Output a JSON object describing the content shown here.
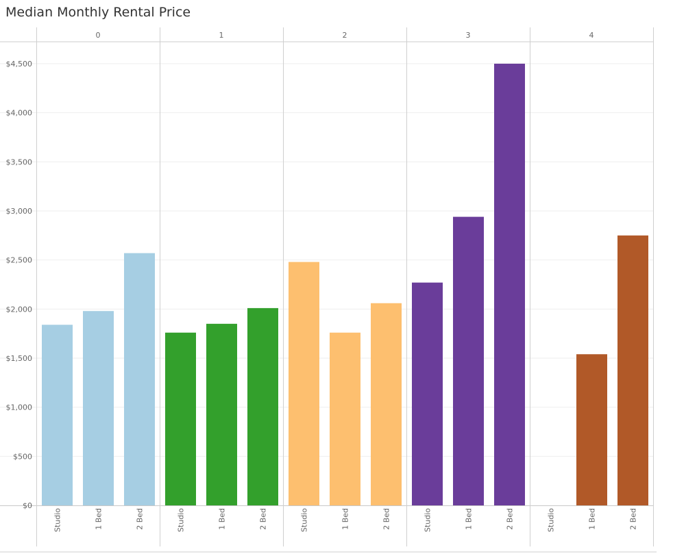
{
  "title": "Median Monthly Rental Price",
  "chart_data": {
    "type": "bar",
    "title": "Median Monthly Rental Price",
    "xlabel": "",
    "ylabel": "",
    "ylim": [
      0,
      4700
    ],
    "y_ticks": [
      0,
      500,
      1000,
      1500,
      2000,
      2500,
      3000,
      3500,
      4000,
      4500
    ],
    "y_tick_labels": [
      "$0",
      "$500",
      "$1,000",
      "$1,500",
      "$2,000",
      "$2,500",
      "$3,000",
      "$3,500",
      "$4,000",
      "$4,500"
    ],
    "categories": [
      "Studio",
      "1 Bed",
      "2 Bed"
    ],
    "grid": "horizontal",
    "legend": "none",
    "panels": [
      {
        "label": "0",
        "color": "#a6cee3",
        "values": [
          1840,
          1980,
          2570
        ]
      },
      {
        "label": "1",
        "color": "#33a02c",
        "values": [
          1760,
          1850,
          2010
        ]
      },
      {
        "label": "2",
        "color": "#fdbf6f",
        "values": [
          2480,
          1760,
          2060
        ]
      },
      {
        "label": "3",
        "color": "#6a3d9a",
        "values": [
          2270,
          2940,
          4500
        ]
      },
      {
        "label": "4",
        "color": "#b15928",
        "values": [
          0,
          1540,
          2750
        ]
      }
    ]
  }
}
